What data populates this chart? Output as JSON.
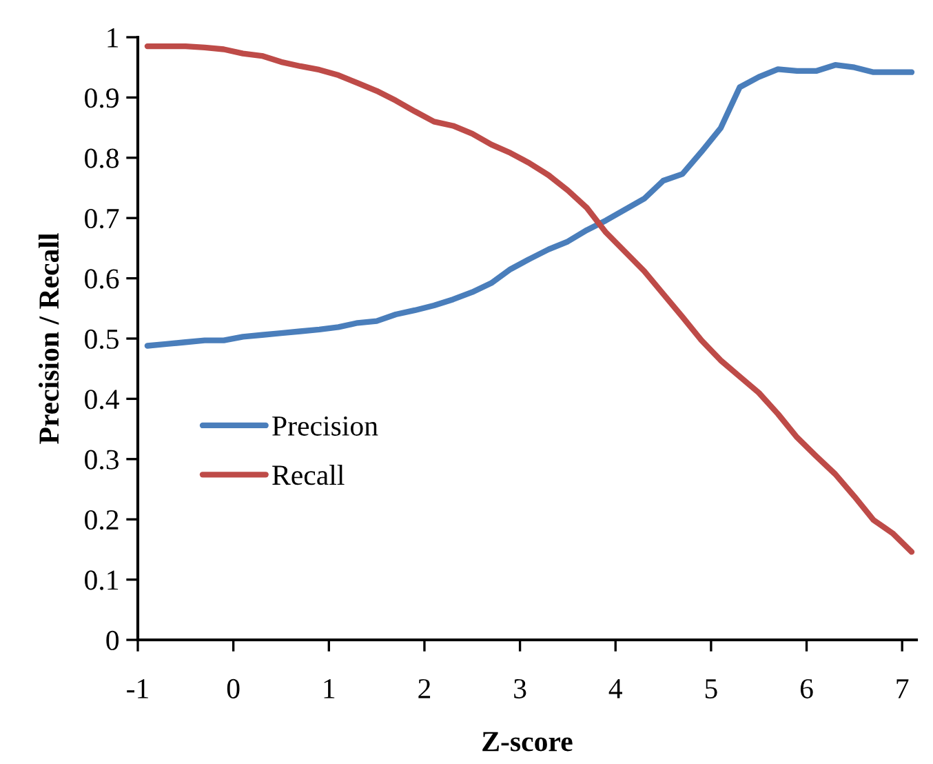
{
  "chart_data": {
    "type": "line",
    "xlabel": "Z-score",
    "ylabel": "Precision / Recall",
    "x": [
      -0.9,
      -0.7,
      -0.5,
      -0.3,
      -0.1,
      0.1,
      0.3,
      0.5,
      0.7,
      0.9,
      1.1,
      1.3,
      1.5,
      1.7,
      1.9,
      2.1,
      2.3,
      2.5,
      2.7,
      2.9,
      3.1,
      3.3,
      3.5,
      3.7,
      3.9,
      4.1,
      4.3,
      4.5,
      4.7,
      4.9,
      5.1,
      5.3,
      5.5,
      5.7,
      5.9,
      6.1,
      6.3,
      6.5,
      6.7,
      6.9,
      7.1
    ],
    "series": [
      {
        "name": "Precision",
        "color": "#4a7ebb",
        "values": [
          0.488,
          0.491,
          0.494,
          0.497,
          0.497,
          0.503,
          0.506,
          0.509,
          0.512,
          0.515,
          0.519,
          0.526,
          0.529,
          0.54,
          0.547,
          0.555,
          0.565,
          0.577,
          0.592,
          0.615,
          0.632,
          0.648,
          0.661,
          0.68,
          0.696,
          0.714,
          0.732,
          0.762,
          0.773,
          0.81,
          0.849,
          0.917,
          0.934,
          0.947,
          0.944,
          0.944,
          0.954,
          0.95,
          0.942,
          0.942,
          0.942
        ]
      },
      {
        "name": "Recall",
        "color": "#be4b48",
        "values": [
          0.985,
          0.985,
          0.985,
          0.983,
          0.98,
          0.973,
          0.969,
          0.959,
          0.952,
          0.946,
          0.937,
          0.924,
          0.911,
          0.895,
          0.877,
          0.86,
          0.853,
          0.84,
          0.822,
          0.808,
          0.791,
          0.771,
          0.746,
          0.717,
          0.676,
          0.644,
          0.612,
          0.574,
          0.536,
          0.497,
          0.464,
          0.437,
          0.41,
          0.375,
          0.336,
          0.305,
          0.275,
          0.238,
          0.199,
          0.177,
          0.146
        ]
      }
    ],
    "xlim": [
      -1,
      7.15
    ],
    "xticks": [
      -1,
      0,
      1,
      2,
      3,
      4,
      5,
      6,
      7
    ],
    "ylim": [
      0,
      1
    ],
    "yticks": [
      0,
      0.1,
      0.2,
      0.3,
      0.4,
      0.5,
      0.6,
      0.7,
      0.8,
      0.9,
      1
    ],
    "grid": false,
    "legend": "center left",
    "marker": "none",
    "line_style": "solid"
  }
}
